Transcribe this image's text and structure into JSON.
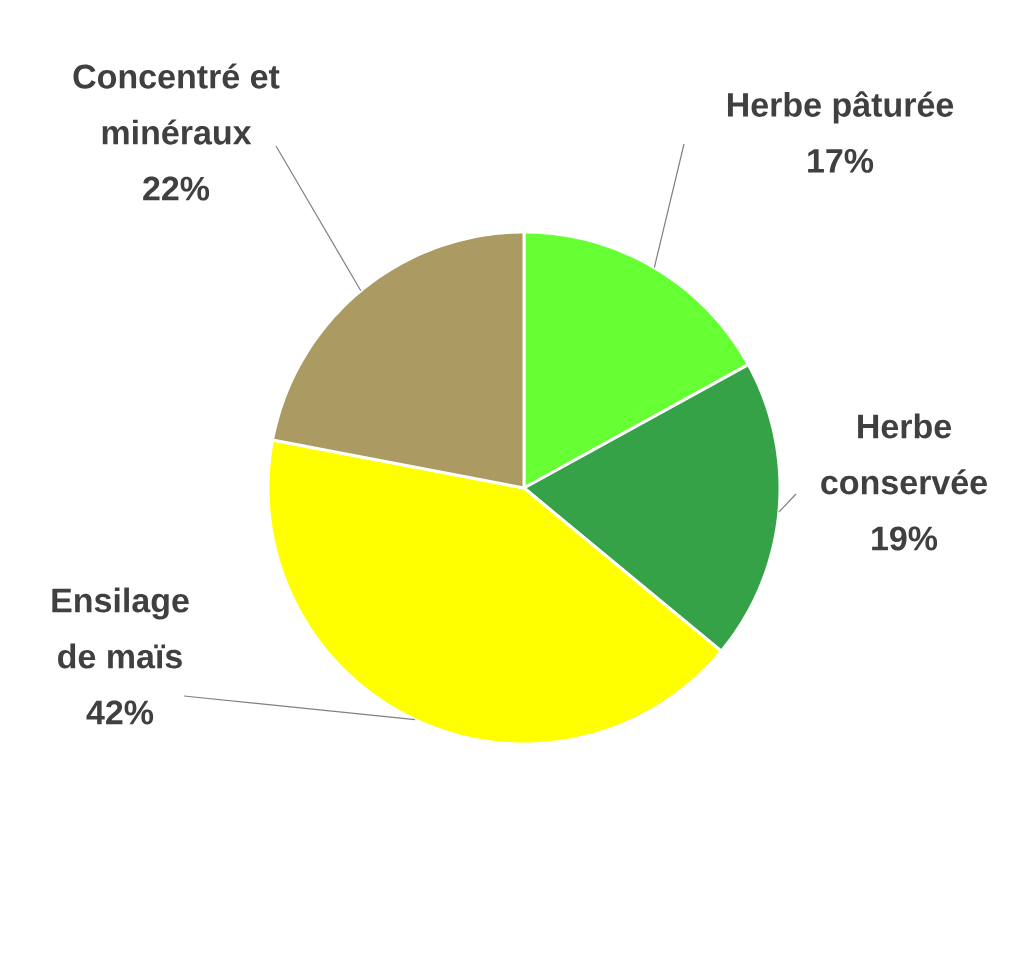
{
  "chart_data": {
    "type": "pie",
    "categories": [
      "Herbe pâturée",
      "Herbe conservée",
      "Ensilage de maïs",
      "Concentré et minéraux"
    ],
    "values": [
      17,
      19,
      42,
      22
    ],
    "value_labels": [
      "17%",
      "19%",
      "42%",
      "22%"
    ],
    "colors": [
      "#66ff33",
      "#36a248",
      "#ffff00",
      "#ac9a63"
    ]
  }
}
